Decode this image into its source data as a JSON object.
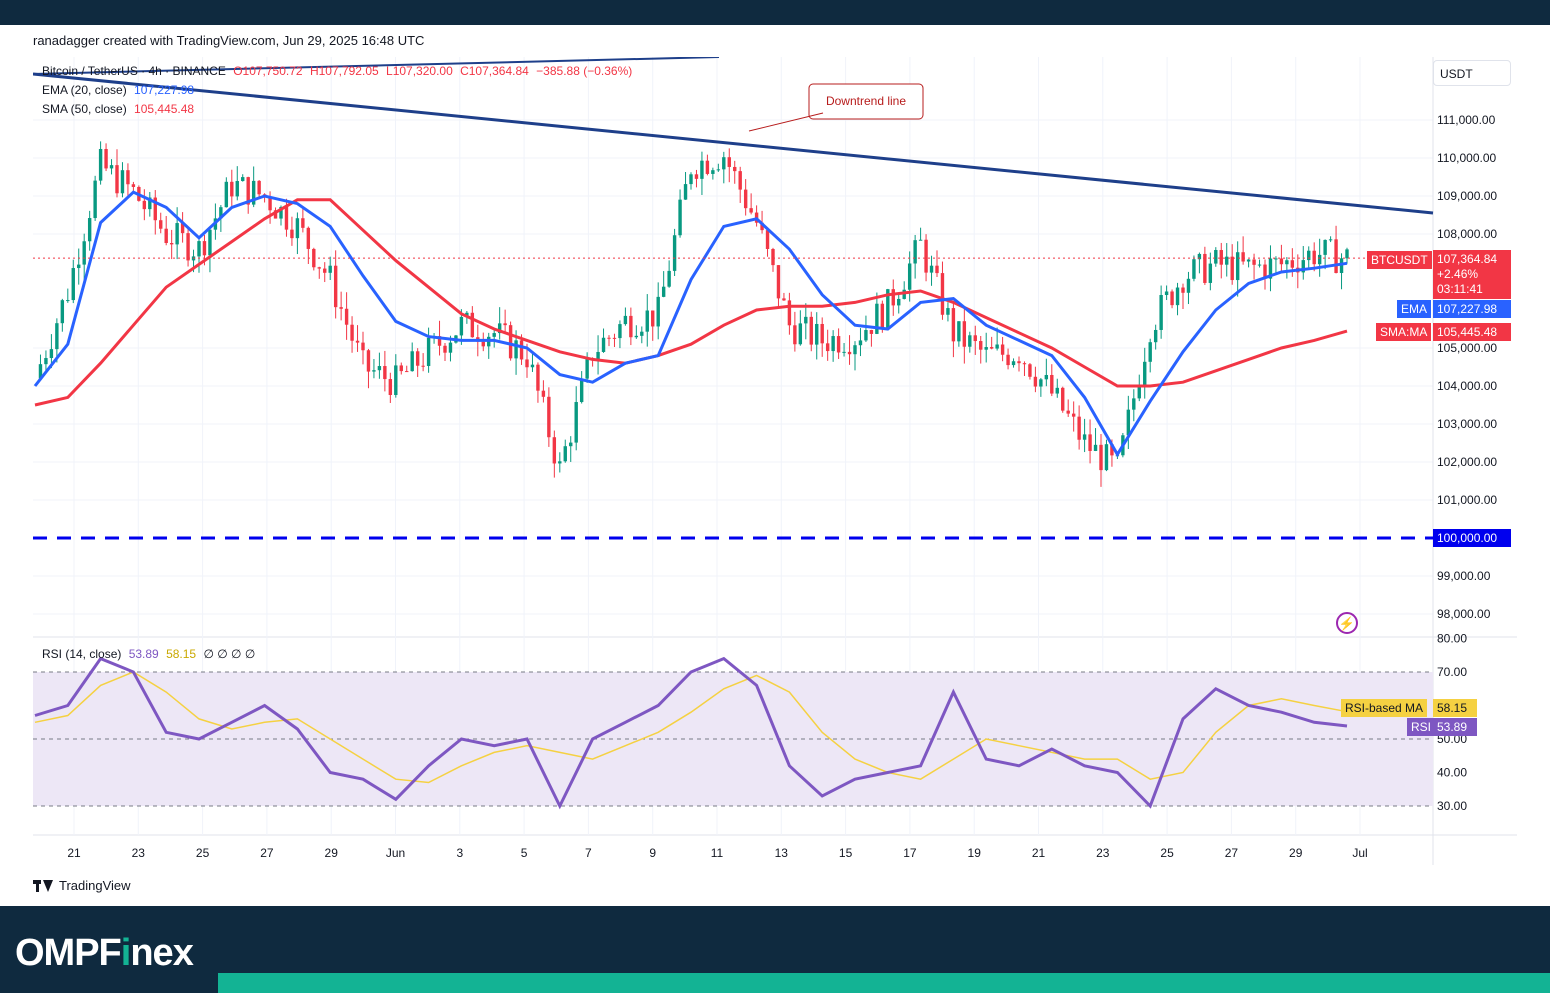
{
  "header": {
    "credit": "ranadagger created with TradingView.com, Jun 29, 2025 16:48 UTC"
  },
  "legend": {
    "symbol": "Bitcoin / TetherUS · 4h · BINANCE",
    "open": "O107,750.72",
    "high": "H107,792.05",
    "low": "L107,320.00",
    "close": "C107,364.84",
    "change": "−385.88 (−0.36%)",
    "ema_label": "EMA (20, close)",
    "ema_value": "107,227.98",
    "sma_label": "SMA (50, close)",
    "sma_value": "105,445.48",
    "rsi_label": "RSI (14, close)",
    "rsi_value": "53.89",
    "rsi_ma_value": "58.15",
    "rsi_empty": "∅ ∅ ∅ ∅"
  },
  "annotation": {
    "downtrend": "Downtrend line"
  },
  "price_scale": {
    "currency": "USDT",
    "ticks": [
      "111,000.00",
      "110,000.00",
      "109,000.00",
      "108,000.00",
      "105,000.00",
      "104,000.00",
      "103,000.00",
      "102,000.00",
      "101,000.00",
      "99,000.00",
      "98,000.00"
    ],
    "tick_values": [
      111000,
      110000,
      109000,
      108000,
      105000,
      104000,
      103000,
      102000,
      101000,
      99000,
      98000
    ],
    "symbol_tag": "BTCUSDT",
    "last_price": "107,364.84",
    "last_change": "+2.46%",
    "countdown": "03:11:41",
    "ema_tag": "EMA",
    "ema_value": "107,227.98",
    "sma_tag": "SMA:MA",
    "sma_value": "105,445.48",
    "support_value": "100,000.00"
  },
  "rsi_scale": {
    "ticks": [
      "80.00",
      "70.00",
      "50.00",
      "40.00",
      "30.00"
    ],
    "tick_values": [
      80,
      70,
      50,
      40,
      30
    ],
    "ma_tag": "RSI-based MA",
    "ma_value": "58.15",
    "rsi_tag": "RSI",
    "rsi_value": "53.89"
  },
  "time_axis": [
    "21",
    "23",
    "25",
    "27",
    "29",
    "Jun",
    "3",
    "5",
    "7",
    "9",
    "11",
    "13",
    "15",
    "17",
    "19",
    "21",
    "23",
    "25",
    "27",
    "29",
    "Jul"
  ],
  "footer": {
    "tradingview": "TradingView",
    "brand_a": "OMPF",
    "brand_b": "i",
    "brand_c": "nex"
  },
  "colors": {
    "ema": "#2962ff",
    "sma": "#f23645",
    "candle_up": "#089981",
    "candle_down": "#f23645",
    "trendline": "#1e3f8a",
    "support": "#0000ee",
    "rsi": "#7e57c2",
    "rsi_ma": "#f5d142",
    "band": "#0f2a3f",
    "accent": "#13b394"
  },
  "chart_data": [
    {
      "type": "candlestick",
      "title": "Bitcoin / TetherUS · 4h · BINANCE",
      "ylabel": "USDT",
      "ylim": [
        97700,
        112000
      ],
      "x": [
        "May 20",
        "May 21",
        "May 22",
        "May 23",
        "May 24",
        "May 25",
        "May 26",
        "May 27",
        "May 28",
        "May 29",
        "May 30",
        "May 31",
        "Jun 1",
        "Jun 2",
        "Jun 3",
        "Jun 4",
        "Jun 5",
        "Jun 6",
        "Jun 7",
        "Jun 8",
        "Jun 9",
        "Jun 10",
        "Jun 11",
        "Jun 12",
        "Jun 13",
        "Jun 14",
        "Jun 15",
        "Jun 16",
        "Jun 17",
        "Jun 18",
        "Jun 19",
        "Jun 20",
        "Jun 21",
        "Jun 22",
        "Jun 23",
        "Jun 24",
        "Jun 25",
        "Jun 26",
        "Jun 27",
        "Jun 28",
        "Jun 29"
      ],
      "close_path": [
        104200,
        106500,
        109800,
        109100,
        108000,
        107600,
        109300,
        109000,
        108200,
        106800,
        104500,
        104100,
        104900,
        105600,
        105400,
        104800,
        101800,
        104900,
        105700,
        105900,
        109800,
        110100,
        108300,
        105600,
        105200,
        105300,
        106100,
        107700,
        105400,
        104800,
        104900,
        103800,
        102500,
        101800,
        105600,
        106900,
        107200,
        107100,
        107200,
        107500,
        107365
      ],
      "series": [
        {
          "name": "EMA (20, close)",
          "values": [
            104000,
            105100,
            108300,
            109100,
            108700,
            107900,
            108700,
            109000,
            108800,
            108200,
            106900,
            105700,
            105300,
            105200,
            105200,
            105000,
            104300,
            104100,
            104600,
            104800,
            106800,
            108200,
            108400,
            107600,
            106400,
            105600,
            105500,
            106200,
            106300,
            105600,
            105200,
            104800,
            103700,
            102200,
            103600,
            104900,
            106000,
            106700,
            107000,
            107100,
            107228
          ]
        },
        {
          "name": "SMA (50, close)",
          "values": [
            103500,
            103700,
            104600,
            105600,
            106600,
            107200,
            107800,
            108400,
            108900,
            108900,
            108100,
            107300,
            106600,
            105900,
            105500,
            105200,
            104900,
            104700,
            104600,
            104800,
            105100,
            105600,
            106000,
            106100,
            106100,
            106200,
            106400,
            106500,
            106200,
            105800,
            105400,
            105000,
            104500,
            104000,
            104000,
            104100,
            104400,
            104700,
            105000,
            105200,
            105445
          ]
        }
      ],
      "support_level": 100000,
      "last_price": 107364.84
    },
    {
      "type": "line",
      "title": "RSI (14, close)",
      "ylim": [
        22,
        82
      ],
      "x": [
        "May 20",
        "May 21",
        "May 22",
        "May 23",
        "May 24",
        "May 25",
        "May 26",
        "May 27",
        "May 28",
        "May 29",
        "May 30",
        "May 31",
        "Jun 1",
        "Jun 2",
        "Jun 3",
        "Jun 4",
        "Jun 5",
        "Jun 6",
        "Jun 7",
        "Jun 8",
        "Jun 9",
        "Jun 10",
        "Jun 11",
        "Jun 12",
        "Jun 13",
        "Jun 14",
        "Jun 15",
        "Jun 16",
        "Jun 17",
        "Jun 18",
        "Jun 19",
        "Jun 20",
        "Jun 21",
        "Jun 22",
        "Jun 23",
        "Jun 24",
        "Jun 25",
        "Jun 26",
        "Jun 27",
        "Jun 28",
        "Jun 29"
      ],
      "series": [
        {
          "name": "RSI",
          "values": [
            57,
            60,
            74,
            70,
            52,
            50,
            55,
            60,
            53,
            40,
            38,
            32,
            42,
            50,
            48,
            50,
            30,
            50,
            55,
            60,
            70,
            74,
            66,
            42,
            33,
            38,
            40,
            42,
            64,
            44,
            42,
            47,
            42,
            40,
            30,
            56,
            65,
            60,
            58,
            55,
            53.89
          ]
        },
        {
          "name": "RSI-based MA",
          "values": [
            55,
            57,
            66,
            70,
            64,
            56,
            53,
            55,
            56,
            50,
            44,
            38,
            37,
            42,
            46,
            48,
            46,
            44,
            48,
            52,
            58,
            65,
            69,
            64,
            52,
            44,
            40,
            38,
            44,
            50,
            48,
            46,
            44,
            44,
            38,
            40,
            52,
            60,
            62,
            60,
            58.15
          ]
        }
      ],
      "levels": [
        70,
        50,
        30
      ]
    }
  ]
}
